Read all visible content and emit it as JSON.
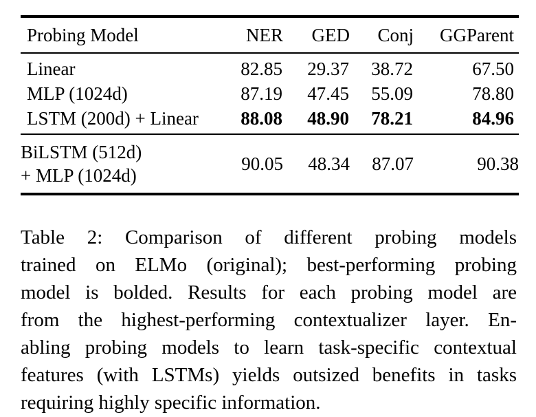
{
  "colors": {
    "background": "#ffffff",
    "text": "#000000",
    "rule": "#000000"
  },
  "table": {
    "columns": [
      "Probing Model",
      "NER",
      "GED",
      "Conj",
      "GGParent"
    ],
    "rows": [
      {
        "model": "Linear",
        "values": [
          "82.85",
          "29.37",
          "38.72",
          "67.50"
        ],
        "bold": false
      },
      {
        "model": "MLP (1024d)",
        "values": [
          "87.19",
          "47.45",
          "55.09",
          "78.80"
        ],
        "bold": false
      },
      {
        "model": "LSTM (200d) + Linear",
        "values": [
          "88.08",
          "48.90",
          "78.21",
          "84.96"
        ],
        "bold": true
      }
    ],
    "bilstm_row": {
      "model_line1": "BiLSTM (512d)",
      "model_line2": "+ MLP (1024d)",
      "values": [
        "90.05",
        "48.34",
        "87.07",
        "90.38"
      ]
    }
  },
  "caption": {
    "lines": [
      "Table 2:  Comparison of different probing models",
      "trained on ELMo (original); best-performing probing",
      "model is bolded. Results for each probing model are",
      "from the highest-performing contextualizer layer. En-",
      "abling probing models to learn task-specific contextual",
      "features (with LSTMs) yields outsized benefits in tasks",
      "requiring highly specific information."
    ]
  }
}
